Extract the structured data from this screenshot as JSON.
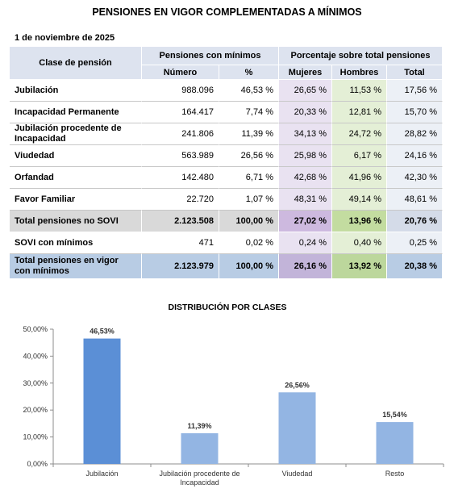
{
  "title": "PENSIONES EN VIGOR COMPLEMENTADAS A MÍNIMOS",
  "date": "1 de noviembre de 2025",
  "table": {
    "header": {
      "clase": "Clase de pensión",
      "group_min": "Pensiones con mínimos",
      "group_pct": "Porcentaje sobre total pensiones",
      "numero": "Número",
      "pct": "%",
      "mujeres": "Mujeres",
      "hombres": "Hombres",
      "total": "Total"
    },
    "rows": [
      {
        "label": "Jubilación",
        "numero": "988.096",
        "pct": "46,53 %",
        "mujeres": "26,65 %",
        "hombres": "11,53 %",
        "total": "17,56 %"
      },
      {
        "label": "Incapacidad Permanente",
        "numero": "164.417",
        "pct": "7,74 %",
        "mujeres": "20,33 %",
        "hombres": "12,81 %",
        "total": "15,70 %"
      },
      {
        "label": "Jubilación procedente de Incapacidad",
        "numero": "241.806",
        "pct": "11,39 %",
        "mujeres": "34,13 %",
        "hombres": "24,72 %",
        "total": "28,82 %"
      },
      {
        "label": "Viudedad",
        "numero": "563.989",
        "pct": "26,56 %",
        "mujeres": "25,98 %",
        "hombres": "6,17 %",
        "total": "24,16 %"
      },
      {
        "label": "Orfandad",
        "numero": "142.480",
        "pct": "6,71 %",
        "mujeres": "42,68 %",
        "hombres": "41,96 %",
        "total": "42,30 %"
      },
      {
        "label": "Favor Familiar",
        "numero": "22.720",
        "pct": "1,07 %",
        "mujeres": "48,31 %",
        "hombres": "49,14 %",
        "total": "48,61 %"
      }
    ],
    "total_no_sovi": {
      "label": "Total pensiones no SOVI",
      "numero": "2.123.508",
      "pct": "100,00 %",
      "mujeres": "27,02 %",
      "hombres": "13,96 %",
      "total": "20,76 %"
    },
    "sovi": {
      "label": "SOVI con mínimos",
      "numero": "471",
      "pct": "0,02 %",
      "mujeres": "0,24 %",
      "hombres": "0,40 %",
      "total": "0,25 %"
    },
    "total_vigor": {
      "label": "Total pensiones en vigor con mínimos",
      "numero": "2.123.979",
      "pct": "100,00 %",
      "mujeres": "26,16 %",
      "hombres": "13,92 %",
      "total": "20,38 %"
    }
  },
  "chart_data": {
    "type": "bar",
    "title": "DISTRIBUCIÓN POR CLASES",
    "categories": [
      "Jubilación",
      "Jubilación procedente de Incapacidad",
      "Viudedad",
      "Resto"
    ],
    "values": [
      46.53,
      11.39,
      26.56,
      15.54
    ],
    "data_labels": [
      "46,53%",
      "11,39%",
      "26,56%",
      "15,54%"
    ],
    "ylim": [
      0,
      50
    ],
    "yticks": [
      "0,00%",
      "10,00%",
      "20,00%",
      "30,00%",
      "40,00%",
      "50,00%"
    ],
    "colors": [
      "#5b8fd6",
      "#93b5e3",
      "#93b5e3",
      "#93b5e3"
    ],
    "grid": false
  }
}
